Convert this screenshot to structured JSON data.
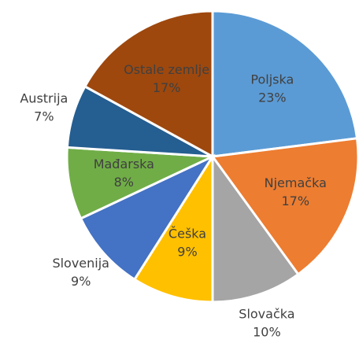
{
  "chart_data": {
    "type": "pie",
    "categories": [
      "Poljska",
      "Njemačka",
      "Slovačka",
      "Češka",
      "Slovenija",
      "Mađarska",
      "Austrija",
      "Ostale zemlje"
    ],
    "values": [
      23,
      17,
      10,
      9,
      9,
      8,
      7,
      17
    ],
    "value_labels": [
      "23%",
      "17%",
      "10%",
      "9%",
      "9%",
      "8%",
      "7%",
      "17%"
    ],
    "colors": [
      "#5b9bd5",
      "#ed7d31",
      "#a5a5a5",
      "#ffc000",
      "#4472c4",
      "#70ad47",
      "#255e91",
      "#9e480e"
    ]
  }
}
